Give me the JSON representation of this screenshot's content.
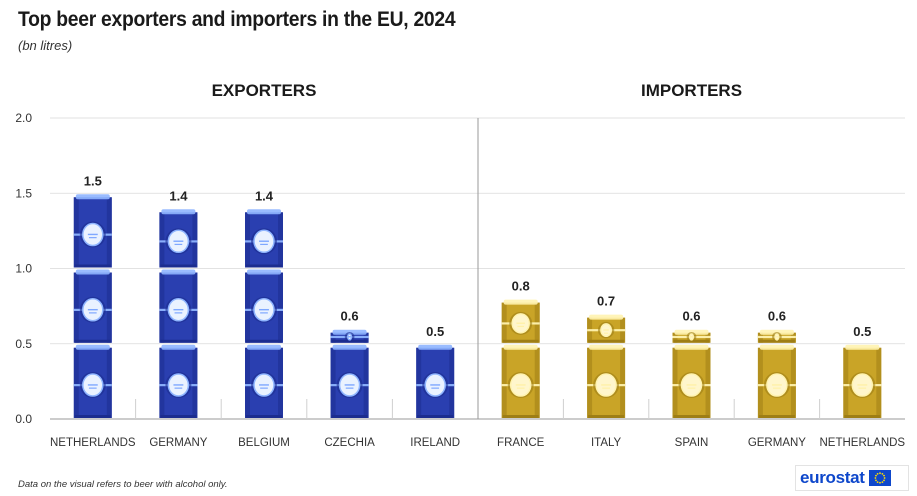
{
  "title": "Top beer exporters and importers in the EU, 2024",
  "subtitle": "(bn litres)",
  "footnote": "Data on the visual refers to beer with alcohol only.",
  "logo_text": "eurostat",
  "colors": {
    "exporters": "#2a3fb0",
    "exporters_dark": "#1c2d8f",
    "exporters_light": "#8fb5ff",
    "importers": "#c9a427",
    "importers_dark": "#9e7e15",
    "importers_light": "#fff3b0",
    "grid": "#d9d9d9"
  },
  "chart_data": {
    "type": "bar",
    "ylim": [
      0,
      2.0
    ],
    "yticks": [
      "0.0",
      "0.5",
      "1.0",
      "1.5",
      "2.0"
    ],
    "grid": "horizontal",
    "groups": [
      {
        "name": "EXPORTERS",
        "categories": [
          "NETHERLANDS",
          "GERMANY",
          "BELGIUM",
          "CZECHIA",
          "IRELAND"
        ],
        "values": [
          1.5,
          1.4,
          1.4,
          0.6,
          0.5
        ],
        "labels": [
          "1.5",
          "1.4",
          "1.4",
          "0.6",
          "0.5"
        ]
      },
      {
        "name": "IMPORTERS",
        "categories": [
          "FRANCE",
          "ITALY",
          "SPAIN",
          "GERMANY",
          "NETHERLANDS"
        ],
        "values": [
          0.8,
          0.7,
          0.6,
          0.6,
          0.5
        ],
        "labels": [
          "0.8",
          "0.7",
          "0.6",
          "0.6",
          "0.5"
        ]
      }
    ]
  }
}
